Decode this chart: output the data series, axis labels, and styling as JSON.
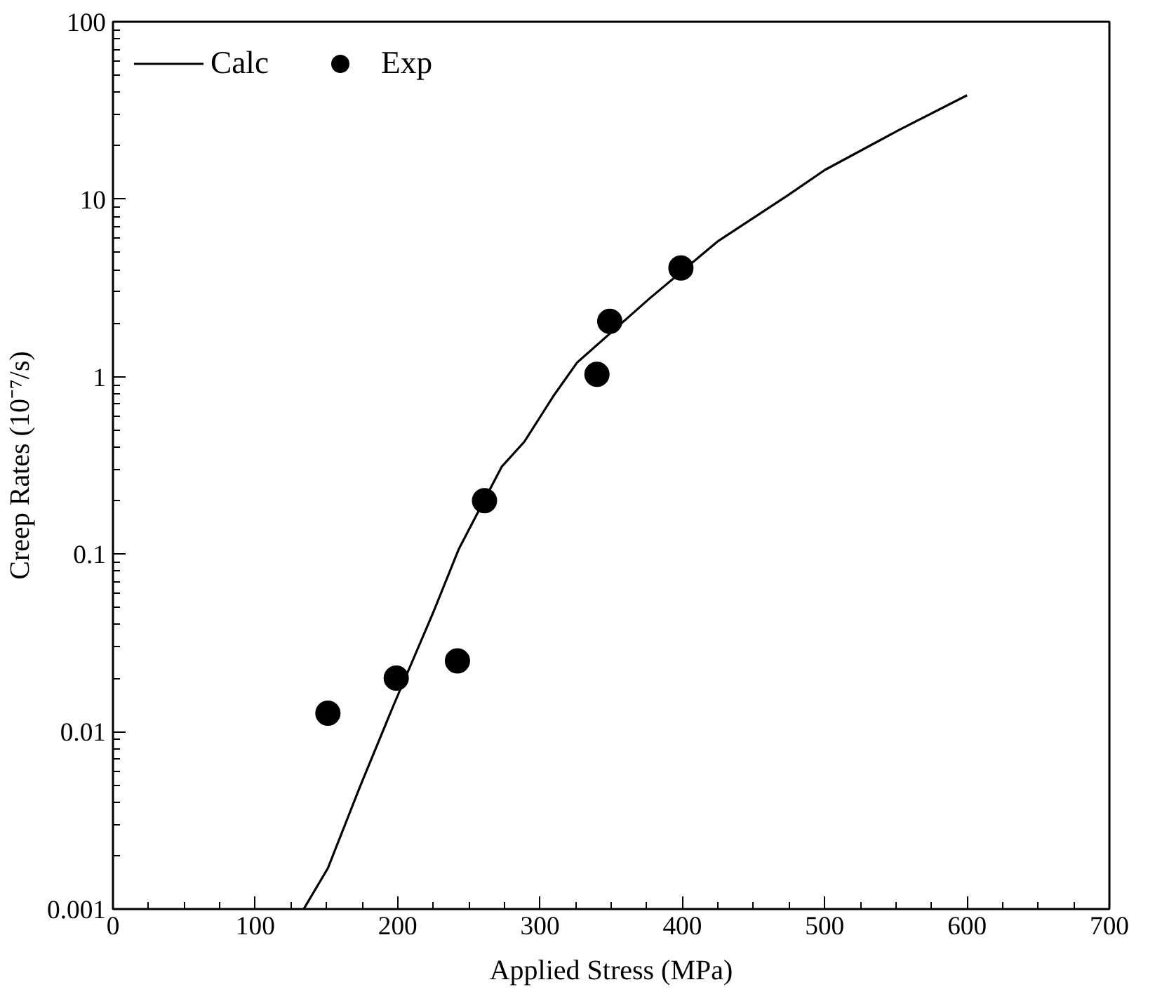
{
  "chart_data": {
    "type": "line",
    "xlabel": "Applied Stress (MPa)",
    "ylabel": "Creep Rates (10⁻⁷/s)",
    "log": "y",
    "grid": false,
    "legend": "top left",
    "xlim": [
      0,
      700
    ],
    "xticks": [
      0,
      100,
      200,
      300,
      400,
      500,
      600,
      700
    ],
    "ylim": [
      0.001,
      100
    ],
    "yticks": [
      0.001,
      0.01,
      0.1,
      1,
      10,
      100
    ],
    "series": [
      {
        "name": "Calc",
        "color": "#000000",
        "marker": "none",
        "line_style": "solid",
        "x": [
          134,
          151,
          174,
          197,
          225,
          243,
          273,
          289,
          310,
          326,
          377,
          425,
          474,
          500,
          552,
          600
        ],
        "values": [
          0.001,
          0.0017,
          0.005,
          0.014,
          0.047,
          0.107,
          0.31,
          0.43,
          0.79,
          1.2,
          2.76,
          5.8,
          10.5,
          14.6,
          24.5,
          38.5
        ]
      },
      {
        "name": "Exp",
        "type": "scatter",
        "color": "#000000",
        "marker": "circle",
        "x": [
          151,
          199,
          242,
          261,
          340,
          349,
          399
        ],
        "values": [
          0.0127,
          0.02,
          0.025,
          0.2,
          1.03,
          2.05,
          4.1
        ]
      }
    ]
  }
}
